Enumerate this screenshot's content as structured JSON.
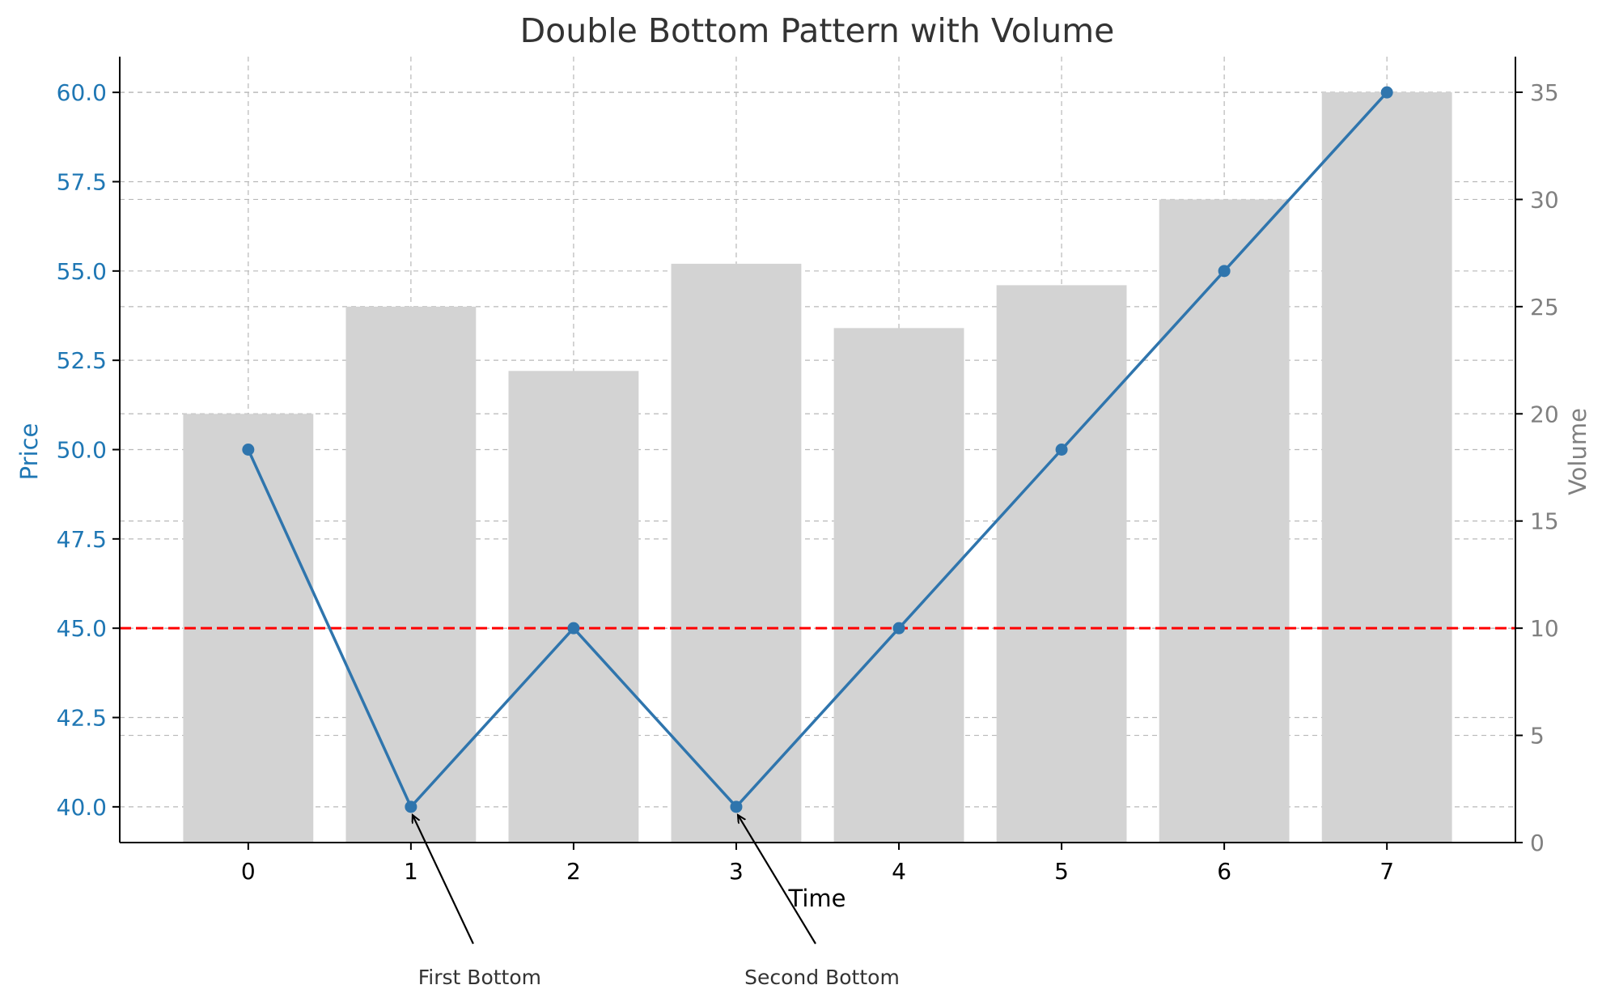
{
  "chart_data": {
    "type": "line",
    "title": "Double Bottom Pattern with Volume",
    "xlabel": "Time",
    "ylabel": "Price",
    "y2label": "Volume",
    "x": [
      0,
      1,
      2,
      3,
      4,
      5,
      6,
      7
    ],
    "x_tick_labels": [
      "0",
      "1",
      "2",
      "3",
      "4",
      "5",
      "6",
      "7"
    ],
    "series": [
      {
        "values": [
          50,
          40,
          45,
          40,
          45,
          50,
          55,
          60
        ],
        "color": "#2f75ad",
        "axis": "left",
        "type": "line",
        "marker": "circle"
      },
      {
        "values": [
          20,
          25,
          22,
          27,
          24,
          26,
          30,
          35
        ],
        "color": "#d3d3d3",
        "axis": "right",
        "type": "bar"
      }
    ],
    "ylim": [
      39,
      61
    ],
    "y2lim": [
      0,
      35
    ],
    "yticks": [
      40.0,
      42.5,
      45.0,
      47.5,
      50.0,
      52.5,
      55.0,
      57.5,
      60.0
    ],
    "ytick_labels": [
      "40.0",
      "42.5",
      "45.0",
      "47.5",
      "50.0",
      "52.5",
      "55.0",
      "57.5",
      "60.0"
    ],
    "y2ticks": [
      0,
      5,
      10,
      15,
      20,
      25,
      30,
      35
    ],
    "y2tick_labels": [
      "0",
      "5",
      "10",
      "15",
      "20",
      "25",
      "30",
      "35"
    ],
    "reference_line": {
      "y": 45,
      "color": "#ff0000",
      "style": "dashed"
    },
    "annotations": [
      {
        "text": "First Bottom",
        "x": 1,
        "y": 40
      },
      {
        "text": "Second Bottom",
        "x": 3,
        "y": 40
      }
    ],
    "grid": true,
    "colors": {
      "price_axis": "#1f77b4",
      "volume_axis": "#808080",
      "title": "#333333"
    }
  }
}
